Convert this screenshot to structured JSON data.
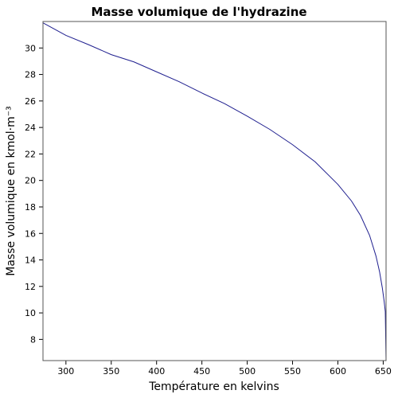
{
  "chart_data": {
    "type": "line",
    "title": "Masse volumique de l'hydrazine",
    "xlabel": "Température en kelvins",
    "ylabel": "Masse volumique en kmol·m⁻³",
    "xlim": [
      274.69,
      653.15
    ],
    "ylim": [
      6.4,
      32.0
    ],
    "xticks": [
      300,
      350,
      400,
      450,
      500,
      550,
      600,
      650
    ],
    "yticks": [
      8,
      10,
      12,
      14,
      16,
      18,
      20,
      22,
      24,
      26,
      28,
      30
    ],
    "grid": false,
    "legend": "none",
    "series": [
      {
        "color": "#1f1f8f",
        "x": [
          274.69,
          300,
          325,
          350,
          375,
          400,
          425,
          450,
          475,
          500,
          525,
          550,
          575,
          600,
          615,
          625,
          635,
          642,
          646,
          649,
          651,
          652.3,
          653.15
        ],
        "y": [
          31.9,
          30.95,
          30.25,
          29.5,
          28.95,
          28.2,
          27.45,
          26.6,
          25.8,
          24.85,
          23.85,
          22.7,
          21.4,
          19.7,
          18.45,
          17.35,
          15.85,
          14.3,
          13.1,
          11.9,
          10.9,
          10.1,
          6.4
        ]
      }
    ]
  }
}
